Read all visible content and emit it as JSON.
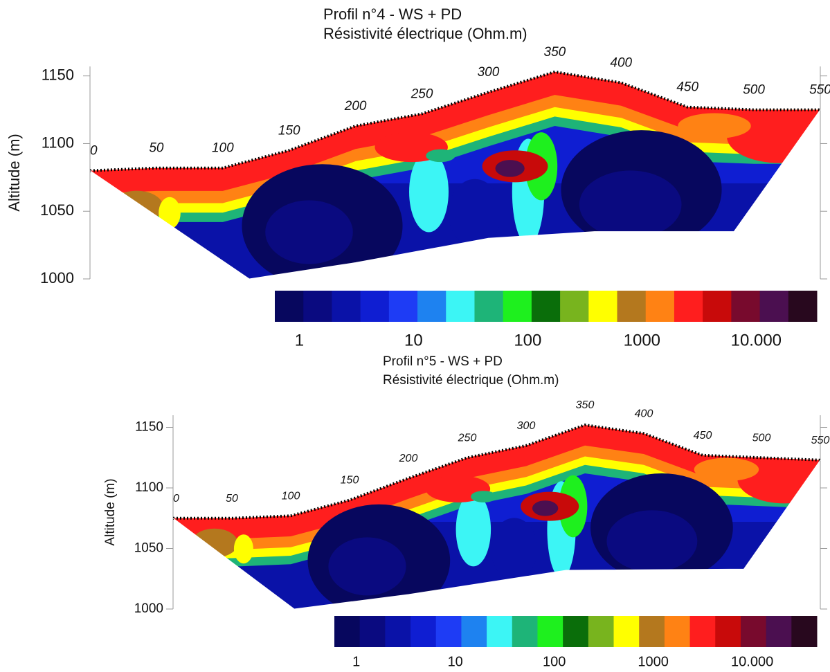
{
  "chart_data": [
    {
      "type": "contour",
      "title": "Profil n°4 - WS + PD",
      "subtitle": "Résistivité électrique (Ohm.m)",
      "ylabel": "Altitude (m)",
      "xlim": [
        0,
        550
      ],
      "ylim": [
        1000,
        1157
      ],
      "yticks": [
        1000,
        1050,
        1100,
        1150
      ],
      "surface": {
        "x": [
          0,
          50,
          100,
          150,
          200,
          250,
          300,
          350,
          400,
          450,
          500,
          550
        ],
        "elevation": [
          1080,
          1082,
          1082,
          1095,
          1113,
          1122,
          1138,
          1153,
          1145,
          1127,
          1125,
          1125
        ]
      },
      "section_bottom": {
        "x": [
          0,
          120,
          200,
          300,
          380,
          485,
          550
        ],
        "elevation": [
          1080,
          1000,
          1012,
          1030,
          1035,
          1035,
          1125
        ]
      },
      "colorbar": {
        "scale": "log",
        "lim": [
          0.61,
          34000
        ],
        "colors": [
          "#07075e",
          "#0a0a80",
          "#0a12a8",
          "#0f1ed2",
          "#1e3cf5",
          "#1e82f0",
          "#3cf5f5",
          "#1eb478",
          "#1ef01e",
          "#0a6e0a",
          "#78b41e",
          "#ffff00",
          "#b4781e",
          "#ff8214",
          "#ff1e1e",
          "#c80a0a",
          "#780a2d",
          "#4b0f50",
          "#28081e"
        ],
        "ticks": [
          1,
          10,
          100,
          1000,
          {
            "value": 10000,
            "label": "10.000"
          }
        ]
      }
    },
    {
      "type": "contour",
      "title": "Profil n°5 - WS + PD",
      "subtitle": "Résistivité électrique (Ohm.m)",
      "ylabel": "Altitude (m)",
      "xlim": [
        0,
        550
      ],
      "ylim": [
        1000,
        1160
      ],
      "yticks": [
        1000,
        1050,
        1100,
        1150
      ],
      "surface": {
        "x": [
          0,
          50,
          100,
          150,
          200,
          250,
          300,
          350,
          400,
          450,
          500,
          550
        ],
        "elevation": [
          1075,
          1075,
          1077,
          1090,
          1108,
          1125,
          1135,
          1152,
          1145,
          1127,
          1125,
          1123
        ]
      },
      "section_bottom": {
        "x": [
          0,
          103,
          200,
          334,
          485,
          550
        ],
        "elevation": [
          1075,
          1000,
          1012,
          1032,
          1033,
          1123
        ]
      },
      "colorbar": {
        "scale": "log",
        "lim": [
          0.6,
          45000
        ],
        "colors": [
          "#07075e",
          "#0a0a80",
          "#0a12a8",
          "#0f1ed2",
          "#1e3cf5",
          "#1e82f0",
          "#3cf5f5",
          "#1eb478",
          "#1ef01e",
          "#0a6e0a",
          "#78b41e",
          "#ffff00",
          "#b4781e",
          "#ff8214",
          "#ff1e1e",
          "#c80a0a",
          "#780a2d",
          "#4b0f50",
          "#28081e"
        ],
        "ticks": [
          1,
          10,
          100,
          1000,
          {
            "value": 10000,
            "label": "10.000"
          }
        ]
      }
    }
  ]
}
